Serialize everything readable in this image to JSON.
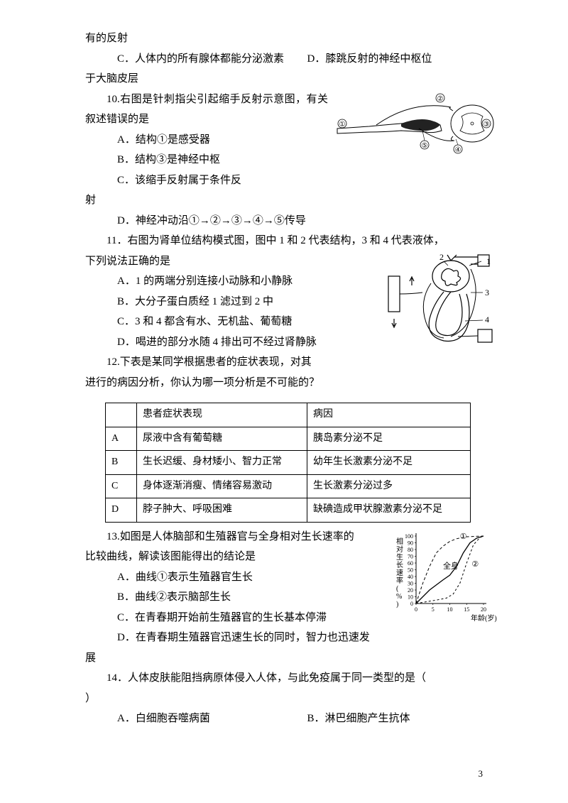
{
  "orphan": {
    "line1": "有的反射",
    "optC": "C．人体内的所有腺体都能分泌激素",
    "optD": "D．膝跳反射的神经中枢位",
    "line3": "于大脑皮层"
  },
  "q10": {
    "stem": "10.右图是针刺指尖引起缩手反射示意图，有关叙述错误的是",
    "optA": "A．结构①是感受器",
    "optB": "B．结构③是神经中枢",
    "optC_a": "C．该缩手反射属于条件反",
    "optC_b": "射",
    "optD": "D．神经冲动沿①→②→③→④→⑤传导",
    "fig": {
      "labels": [
        "①",
        "②",
        "③",
        "④",
        "⑤"
      ],
      "stroke": "#000000",
      "fill": "#ffffff",
      "dot_fill": "#222222"
    }
  },
  "q11": {
    "stem1": "11．右图为肾单位结构模式图，图中 1 和 2 代表结构，3 和 4 代表液体，",
    "stem2": "下列说法正确的是",
    "optA": "A．1 的两端分别连接小动脉和小静脉",
    "optB": "B．大分子蛋白质经 1 滤过到 2 中",
    "optC": "C．3 和 4 都含有水、无机盐、葡萄糖",
    "optD": "D．喝进的部分水随 4 排出可不经过肾静脉",
    "fig": {
      "labels": [
        "1",
        "2",
        "3",
        "4"
      ],
      "stroke": "#000000"
    }
  },
  "q12": {
    "stem1": "12.下表是某同学根据患者的症状表现，对其",
    "stem2": "进行的病因分析，你认为哪一项分析是不可能的？",
    "table": {
      "header": [
        "",
        "患者症状表现",
        "病因"
      ],
      "rows": [
        [
          "A",
          "尿液中含有葡萄糖",
          "胰岛素分泌不足"
        ],
        [
          "B",
          "生长迟缓、身材矮小、智力正常",
          "幼年生长激素分泌不足"
        ],
        [
          "C",
          "身体逐渐消瘦、情绪容易激动",
          "生长激素分泌过多"
        ],
        [
          "D",
          "脖子肿大、呼吸困难",
          "缺碘造成甲状腺激素分泌不足"
        ]
      ]
    }
  },
  "q13": {
    "stem1": "13.如图是人体脑部和生殖器官与全身相对生长速率的",
    "stem2": "比较曲线，解读该图能得出的结论是",
    "optA": "A．曲线①表示生殖器官生长",
    "optB": "B．曲线②表示脑部生长",
    "optC": "C．在青春期开始前生殖器官的生长基本停滞",
    "optD_a": "D．在青春期生殖器官迅速生长的同时，智力也迅速发",
    "optD_b": "展",
    "fig": {
      "ylabel": "相对生长速率(%)",
      "yticks": [
        "0",
        "10",
        "20",
        "30",
        "40",
        "50",
        "60",
        "70",
        "80",
        "90",
        "100"
      ],
      "xticks": [
        "0",
        "5",
        "10",
        "15",
        "20"
      ],
      "xlabel": "年龄(岁)",
      "curve_labels": [
        "①",
        "全身",
        "②"
      ],
      "series": {
        "c1": {
          "dash": "4,3",
          "points": [
            [
              0,
              0
            ],
            [
              2,
              30
            ],
            [
              4,
              55
            ],
            [
              6,
              75
            ],
            [
              8,
              85
            ],
            [
              10,
              92
            ],
            [
              12,
              96
            ],
            [
              15,
              99
            ],
            [
              20,
              100
            ]
          ]
        },
        "body": {
          "dash": "none",
          "points": [
            [
              0,
              0
            ],
            [
              4,
              20
            ],
            [
              8,
              35
            ],
            [
              10,
              42
            ],
            [
              12,
              55
            ],
            [
              14,
              75
            ],
            [
              16,
              90
            ],
            [
              18,
              97
            ],
            [
              20,
              100
            ]
          ]
        },
        "c2": {
          "dash": "3,3",
          "points": [
            [
              0,
              0
            ],
            [
              6,
              5
            ],
            [
              9,
              8
            ],
            [
              11,
              14
            ],
            [
              13,
              30
            ],
            [
              15,
              60
            ],
            [
              17,
              87
            ],
            [
              19,
              98
            ],
            [
              20,
              100
            ]
          ]
        }
      },
      "axis_color": "#000000"
    }
  },
  "q14": {
    "stem": "14．人体皮肤能阻挡病原体侵入人体，与此免疫属于同一类型的是（",
    "stem_close": "）",
    "optA": "A．白细胞吞噬病菌",
    "optB": "B．淋巴细胞产生抗体"
  },
  "page_number": "3"
}
